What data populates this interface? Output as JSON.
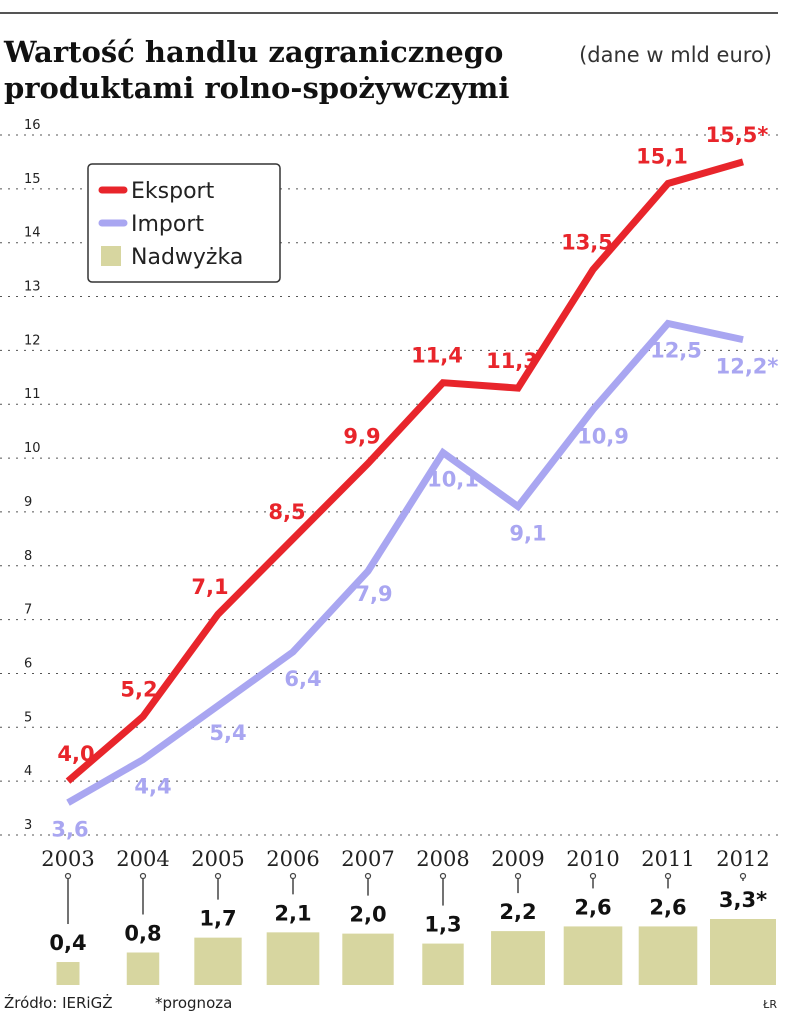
{
  "chart_data": {
    "type": "line",
    "title": "Wartość handlu zagranicznego produktami rolno-spożywczymi",
    "title_lines": [
      "Wartość handlu zagranicznego",
      "produktami rolno-spożywczymi"
    ],
    "subtitle": "(dane w mld euro)",
    "categories": [
      "2003",
      "2004",
      "2005",
      "2006",
      "2007",
      "2008",
      "2009",
      "2010",
      "2011",
      "2012"
    ],
    "ylim": [
      3,
      16
    ],
    "yticks": [
      3,
      4,
      5,
      6,
      7,
      8,
      9,
      10,
      11,
      12,
      13,
      14,
      15,
      16
    ],
    "ytick_labels": [
      "3",
      "4",
      "5",
      "6",
      "7",
      "8",
      "9",
      "10",
      "11",
      "12",
      "13",
      "14",
      "15",
      "16"
    ],
    "grid": true,
    "legend_position": "top-left",
    "series": [
      {
        "name": "Eksport",
        "color": "#e8252b",
        "values": [
          4.0,
          5.2,
          7.1,
          8.5,
          9.9,
          11.4,
          11.3,
          13.5,
          15.1,
          15.5
        ],
        "labels": [
          "4,0",
          "5,2",
          "7,1",
          "8,5",
          "9,9",
          "11,4",
          "11,3",
          "13,5",
          "15,1",
          "15,5*"
        ]
      },
      {
        "name": "Import",
        "color": "#a9a6f1",
        "values": [
          3.6,
          4.4,
          5.4,
          6.4,
          7.9,
          10.1,
          9.1,
          10.9,
          12.5,
          12.2
        ],
        "labels": [
          "3,6",
          "4,4",
          "5,4",
          "6,4",
          "7,9",
          "10,1",
          "9,1",
          "10,9",
          "12,5",
          "12,2*"
        ]
      }
    ],
    "surplus": {
      "name": "Nadwyżka",
      "color": "#d7d6a0",
      "values": [
        0.4,
        0.8,
        1.7,
        2.1,
        2.0,
        1.3,
        2.2,
        2.6,
        2.6,
        3.3
      ],
      "labels": [
        "0,4",
        "0,8",
        "1,7",
        "2,1",
        "2,0",
        "1,3",
        "2,2",
        "2,6",
        "2,6",
        "3,3*"
      ]
    },
    "source": "Źródło: IERiGŻ",
    "note": "*prognoza",
    "credit": "ŁR"
  }
}
